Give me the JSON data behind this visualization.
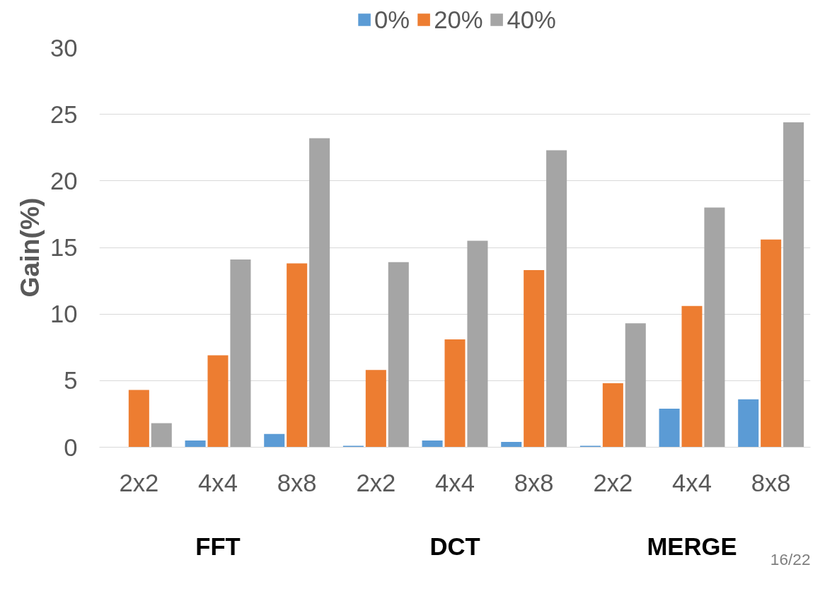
{
  "chart_data": {
    "type": "bar",
    "ylabel": "Gain(%)",
    "categories": [
      "2x2",
      "4x4",
      "8x8",
      "2x2",
      "4x4",
      "8x8",
      "2x2",
      "4x4",
      "8x8"
    ],
    "series": [
      {
        "name": "0%",
        "color": "#5b9bd5",
        "values": [
          0,
          0.5,
          1.0,
          0.1,
          0.5,
          0.4,
          0.1,
          2.9,
          3.6
        ]
      },
      {
        "name": "20%",
        "color": "#ed7d31",
        "values": [
          4.3,
          6.9,
          13.8,
          5.8,
          8.1,
          13.3,
          4.8,
          10.6,
          15.6
        ]
      },
      {
        "name": "40%",
        "color": "#a5a5a5",
        "values": [
          1.8,
          14.1,
          23.2,
          13.9,
          15.5,
          22.3,
          9.3,
          18.0,
          24.4
        ]
      }
    ],
    "ylim": [
      0,
      30
    ],
    "yticks": [
      0,
      5,
      10,
      15,
      20,
      25,
      30
    ],
    "grid": "y",
    "legend": "top",
    "annotations": [
      "FFT",
      "DCT",
      "MERGE",
      "16/22"
    ]
  }
}
